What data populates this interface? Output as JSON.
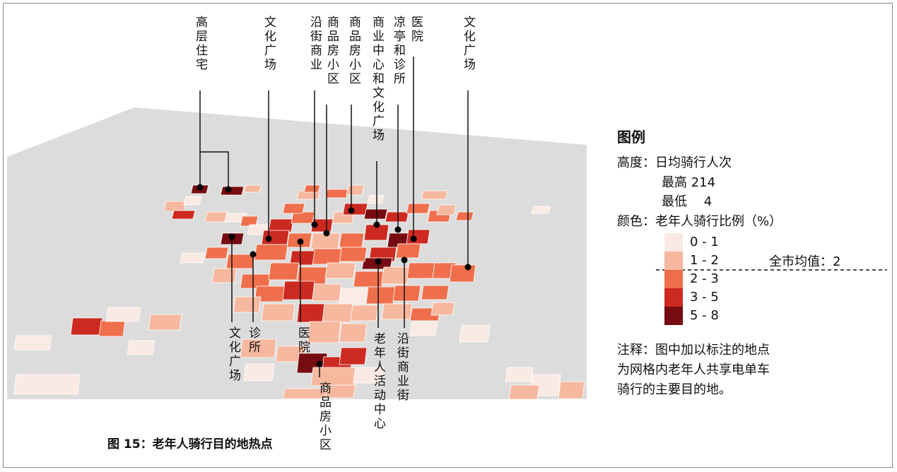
{
  "map": {
    "top_labels": [
      "高层住宅",
      "文化广场",
      "沿街商业",
      "商品房小区",
      "商品房小区",
      "商业中心和文化广场",
      "凉亭和诊所",
      "医院",
      "文化广场"
    ],
    "bottom_labels": [
      "文化广场",
      "诊所",
      "医院",
      "商品房小区",
      "老年人活动中心",
      "沿街商业街"
    ]
  },
  "legend": {
    "title": "图例",
    "height_line": "高度：日均骑行人次",
    "max_line": "最高 214",
    "min_line": "最低　 4",
    "color_line": "颜色：老年人骑行比例（%）",
    "classes": [
      {
        "label": "0 - 1",
        "color": "#fbe9e3"
      },
      {
        "label": "1 - 2",
        "color": "#f7b8a0"
      },
      {
        "label": "2 - 3",
        "color": "#ef6f4c"
      },
      {
        "label": "3 - 5",
        "color": "#cc2a20"
      },
      {
        "label": "5 - 8",
        "color": "#760c12"
      }
    ],
    "average": "全市均值：2"
  },
  "note": [
    "注释：图中加以标注的地点",
    "为网格内老年人共享电单车",
    "骑行的主要目的地。"
  ],
  "caption": "图 15：老年人骑行目的地热点"
}
